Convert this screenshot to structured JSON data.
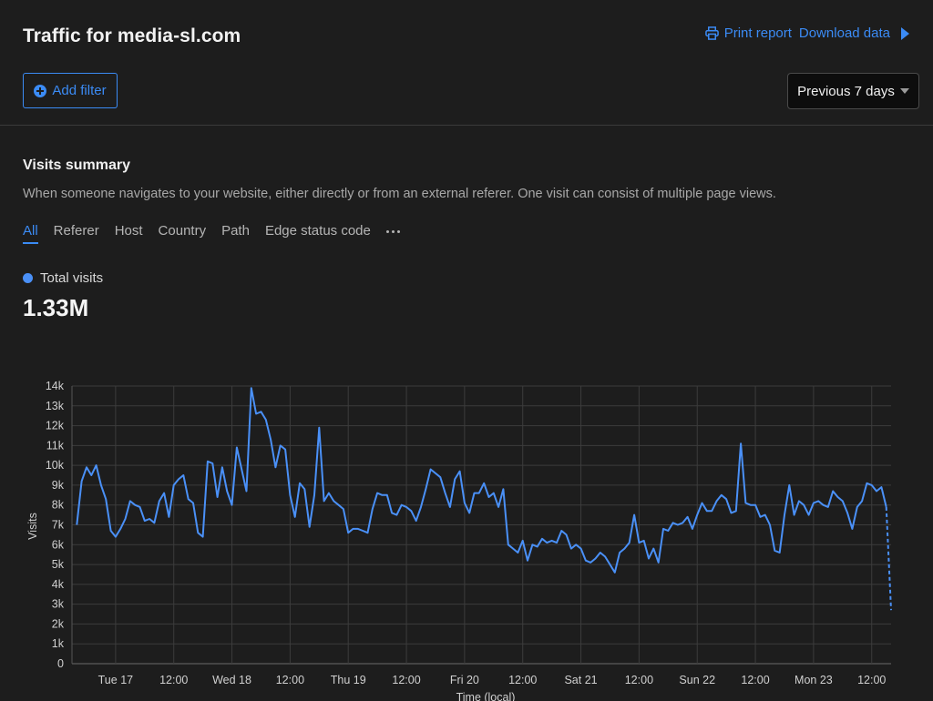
{
  "header": {
    "title": "Traffic for media-sl.com",
    "print_label": "Print report",
    "download_label": "Download data",
    "add_filter_label": "Add filter",
    "range_label": "Previous 7 days"
  },
  "summary": {
    "title": "Visits summary",
    "description": "When someone navigates to your website, either directly or from an external referer. One visit can consist of multiple page views."
  },
  "tabs": [
    {
      "label": "All",
      "active": true
    },
    {
      "label": "Referer",
      "active": false
    },
    {
      "label": "Host",
      "active": false
    },
    {
      "label": "Country",
      "active": false
    },
    {
      "label": "Path",
      "active": false
    },
    {
      "label": "Edge status code",
      "active": false
    }
  ],
  "metric": {
    "label": "Total visits",
    "value": "1.33M",
    "color": "#4a90f7"
  },
  "colors": {
    "accent": "#3b8bf5",
    "line": "#4a90f7",
    "background": "#1d1d1d"
  },
  "chart_data": {
    "type": "line",
    "xlabel": "Time (local)",
    "ylabel": "Visits",
    "ylim": [
      0,
      14000
    ],
    "yticks": [
      0,
      1000,
      2000,
      3000,
      4000,
      5000,
      6000,
      7000,
      8000,
      9000,
      10000,
      11000,
      12000,
      13000,
      14000
    ],
    "ytick_labels": [
      "0",
      "1k",
      "2k",
      "3k",
      "4k",
      "5k",
      "6k",
      "7k",
      "8k",
      "9k",
      "10k",
      "11k",
      "12k",
      "13k",
      "14k"
    ],
    "xlim_hours": [
      -9,
      160
    ],
    "xticks": [
      {
        "h": 0,
        "label": "Tue 17"
      },
      {
        "h": 12,
        "label": "12:00"
      },
      {
        "h": 24,
        "label": "Wed 18"
      },
      {
        "h": 36,
        "label": "12:00"
      },
      {
        "h": 48,
        "label": "Thu 19"
      },
      {
        "h": 60,
        "label": "12:00"
      },
      {
        "h": 72,
        "label": "Fri 20"
      },
      {
        "h": 84,
        "label": "12:00"
      },
      {
        "h": 96,
        "label": "Sat 21"
      },
      {
        "h": 108,
        "label": "12:00"
      },
      {
        "h": 120,
        "label": "Sun 22"
      },
      {
        "h": 132,
        "label": "12:00"
      },
      {
        "h": 144,
        "label": "Mon 23"
      },
      {
        "h": 156,
        "label": "12:00"
      }
    ],
    "grid": true,
    "series": [
      {
        "start_hour": -8,
        "step_hours": 1,
        "values": [
          7000,
          9200,
          9900,
          9500,
          10000,
          9000,
          8300,
          6700,
          6400,
          6800,
          7300,
          8200,
          8000,
          7900,
          7200,
          7300,
          7100,
          8200,
          8600,
          7400,
          9000,
          9300,
          9500,
          8300,
          8100,
          6600,
          6400,
          10200,
          10100,
          8400,
          9900,
          8700,
          8000,
          10900,
          9800,
          8700,
          13900,
          12600,
          12700,
          12300,
          11300,
          9900,
          11000,
          10800,
          8500,
          7400,
          9100,
          8800,
          6900,
          8500,
          11900,
          8200,
          8600,
          8200,
          8000,
          7800,
          6600,
          6800,
          6800,
          6700,
          6600,
          7800,
          8600,
          8500,
          8500,
          7600,
          7500,
          8000,
          7900,
          7700,
          7200,
          7900,
          8800,
          9800,
          9600,
          9400,
          8600,
          7900,
          9300,
          9700,
          8100,
          7600,
          8600,
          8600,
          9100,
          8400,
          8600,
          7900,
          8800,
          6000,
          5800,
          5600,
          6200,
          5200,
          6000,
          5900,
          6300,
          6100,
          6200,
          6100,
          6700,
          6500,
          5800,
          6000,
          5800,
          5200,
          5100,
          5300,
          5600,
          5400,
          5000,
          4600,
          5600,
          5800,
          6100,
          7500,
          6100,
          6200,
          5300,
          5800,
          5100,
          6800,
          6700,
          7100,
          7000,
          7100,
          7400,
          6800,
          7500,
          8100,
          7700,
          7700,
          8200,
          8500,
          8300,
          7600,
          7700,
          11100,
          8100,
          8000,
          8000,
          7400,
          7500,
          7000,
          5700,
          5600,
          7500,
          9000,
          7500,
          8200,
          8000,
          7500,
          8100,
          8200,
          8000,
          7900,
          8700,
          8400,
          8200,
          7600,
          6800,
          7900,
          8200,
          9100,
          9000,
          8700,
          8900,
          7900,
          2700
        ]
      }
    ]
  }
}
